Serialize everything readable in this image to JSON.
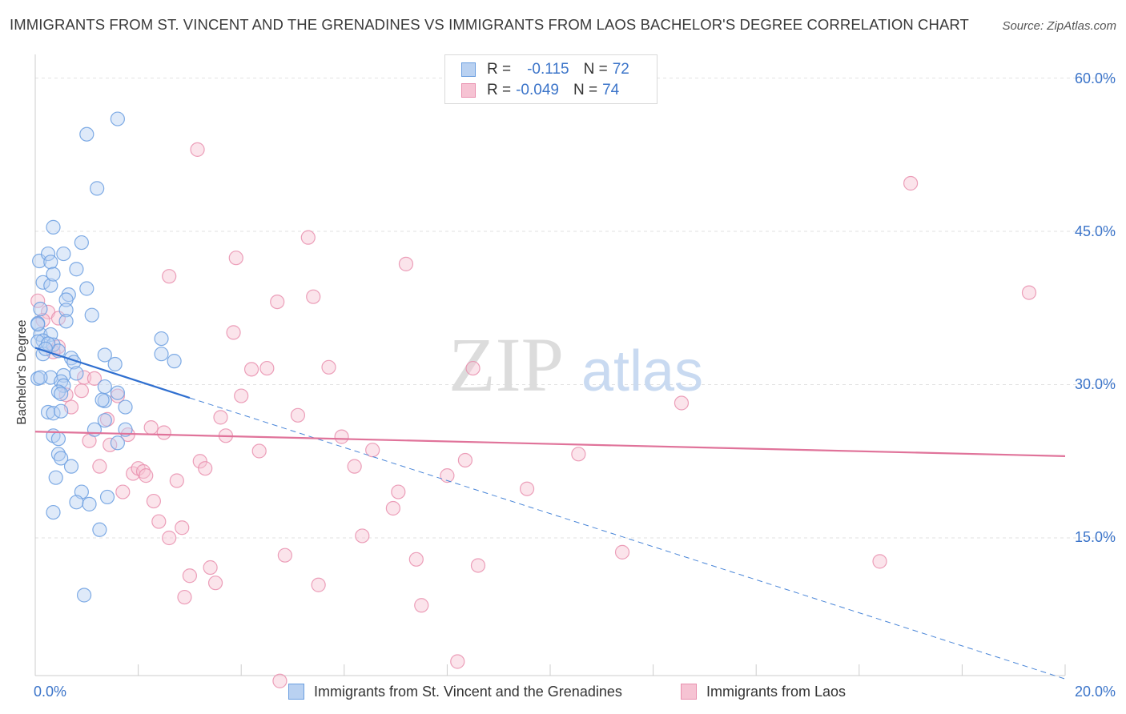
{
  "chart_data": {
    "type": "scatter",
    "title": "IMMIGRANTS FROM ST. VINCENT AND THE GRENADINES VS IMMIGRANTS FROM LAOS BACHELOR'S DEGREE CORRELATION CHART",
    "source": "Source: ZipAtlas.com",
    "xlabel": "",
    "ylabel": "Bachelor's Degree",
    "xlim": [
      0,
      20
    ],
    "ylim": [
      0,
      60
    ],
    "x_tick_labels": [
      "0.0%",
      "20.0%"
    ],
    "y_tick_labels": [
      "60.0%",
      "45.0%",
      "30.0%",
      "15.0%"
    ],
    "y_ticks": [
      60,
      45,
      30,
      15
    ],
    "watermark": {
      "zip": "ZIP",
      "atlas": "atlas"
    },
    "legend": [
      {
        "r_label": "R =",
        "r_value": "-0.115",
        "n_label": "N =",
        "n_value": "72"
      },
      {
        "r_label": "R =",
        "r_value": "-0.049",
        "n_label": "N =",
        "n_value": "74"
      }
    ],
    "series": [
      {
        "name": "Immigrants from St. Vincent and the Grenadines",
        "color": "#6a9ee0",
        "fill": "#b9d1f1",
        "trend": {
          "x": [
            0.0,
            3.0
          ],
          "y": [
            33.6,
            28.7
          ],
          "extend_to": [
            20.0,
            1.2
          ]
        },
        "points": [
          [
            0.08,
            42.1
          ],
          [
            0.25,
            42.8
          ],
          [
            0.3,
            42.0
          ],
          [
            0.55,
            42.8
          ],
          [
            0.35,
            45.4
          ],
          [
            0.9,
            43.9
          ],
          [
            0.15,
            40.0
          ],
          [
            0.3,
            39.7
          ],
          [
            0.35,
            40.8
          ],
          [
            0.8,
            41.3
          ],
          [
            1.0,
            39.4
          ],
          [
            0.65,
            38.8
          ],
          [
            0.6,
            38.3
          ],
          [
            0.1,
            37.4
          ],
          [
            0.6,
            37.3
          ],
          [
            1.1,
            36.8
          ],
          [
            0.05,
            36.0
          ],
          [
            0.6,
            36.2
          ],
          [
            0.1,
            34.9
          ],
          [
            0.3,
            34.9
          ],
          [
            0.15,
            34.3
          ],
          [
            0.35,
            33.9
          ],
          [
            0.05,
            34.2
          ],
          [
            0.15,
            33.0
          ],
          [
            0.45,
            33.3
          ],
          [
            0.7,
            32.6
          ],
          [
            0.75,
            32.2
          ],
          [
            1.35,
            32.9
          ],
          [
            1.55,
            32.0
          ],
          [
            2.45,
            34.5
          ],
          [
            2.45,
            33.0
          ],
          [
            2.7,
            32.3
          ],
          [
            0.05,
            30.6
          ],
          [
            0.3,
            30.7
          ],
          [
            0.55,
            30.9
          ],
          [
            0.5,
            30.3
          ],
          [
            0.55,
            29.9
          ],
          [
            0.45,
            29.3
          ],
          [
            1.35,
            29.8
          ],
          [
            1.6,
            29.2
          ],
          [
            1.35,
            28.4
          ],
          [
            1.75,
            27.8
          ],
          [
            0.25,
            27.3
          ],
          [
            0.35,
            27.2
          ],
          [
            0.5,
            27.4
          ],
          [
            1.35,
            26.5
          ],
          [
            1.15,
            25.6
          ],
          [
            1.75,
            25.6
          ],
          [
            0.35,
            25.0
          ],
          [
            0.45,
            24.7
          ],
          [
            1.6,
            24.3
          ],
          [
            0.45,
            23.2
          ],
          [
            0.5,
            22.8
          ],
          [
            0.7,
            22.0
          ],
          [
            0.4,
            20.9
          ],
          [
            0.9,
            19.5
          ],
          [
            1.4,
            19.0
          ],
          [
            0.8,
            18.5
          ],
          [
            1.05,
            18.3
          ],
          [
            0.35,
            17.5
          ],
          [
            1.25,
            15.8
          ],
          [
            0.95,
            9.4
          ],
          [
            1.0,
            54.5
          ],
          [
            1.6,
            56.0
          ],
          [
            1.2,
            49.2
          ],
          [
            0.05,
            35.9
          ],
          [
            0.25,
            34.0
          ],
          [
            0.1,
            30.7
          ],
          [
            0.5,
            29.1
          ],
          [
            1.3,
            28.5
          ],
          [
            0.8,
            31.1
          ],
          [
            0.2,
            33.5
          ]
        ]
      },
      {
        "name": "Immigrants from Laos",
        "color": "#e98fae",
        "fill": "#f6c3d3",
        "trend": {
          "x": [
            0.0,
            20.0
          ],
          "y": [
            25.4,
            23.0
          ]
        },
        "points": [
          [
            0.05,
            38.2
          ],
          [
            0.25,
            37.1
          ],
          [
            0.15,
            36.3
          ],
          [
            0.45,
            33.7
          ],
          [
            0.35,
            33.2
          ],
          [
            0.95,
            30.7
          ],
          [
            0.6,
            29.0
          ],
          [
            0.7,
            27.8
          ],
          [
            0.9,
            29.4
          ],
          [
            1.15,
            30.6
          ],
          [
            1.4,
            26.6
          ],
          [
            1.6,
            28.9
          ],
          [
            1.25,
            22.0
          ],
          [
            1.45,
            24.1
          ],
          [
            1.8,
            25.1
          ],
          [
            1.9,
            21.3
          ],
          [
            2.0,
            21.8
          ],
          [
            2.1,
            21.5
          ],
          [
            2.15,
            21.1
          ],
          [
            2.3,
            18.6
          ],
          [
            2.4,
            16.6
          ],
          [
            2.5,
            25.3
          ],
          [
            2.6,
            15.0
          ],
          [
            2.75,
            20.6
          ],
          [
            2.85,
            16.0
          ],
          [
            3.0,
            11.3
          ],
          [
            3.2,
            22.5
          ],
          [
            3.3,
            21.8
          ],
          [
            3.4,
            12.1
          ],
          [
            3.5,
            10.6
          ],
          [
            3.6,
            26.8
          ],
          [
            3.7,
            25.0
          ],
          [
            3.85,
            35.1
          ],
          [
            4.0,
            28.9
          ],
          [
            4.2,
            31.5
          ],
          [
            4.35,
            23.5
          ],
          [
            4.5,
            31.6
          ],
          [
            4.7,
            38.1
          ],
          [
            4.85,
            13.3
          ],
          [
            5.1,
            27.0
          ],
          [
            5.3,
            44.4
          ],
          [
            5.4,
            38.6
          ],
          [
            5.5,
            10.4
          ],
          [
            5.7,
            31.7
          ],
          [
            5.95,
            24.9
          ],
          [
            6.2,
            22.0
          ],
          [
            6.35,
            15.2
          ],
          [
            6.55,
            23.6
          ],
          [
            6.95,
            17.9
          ],
          [
            7.05,
            19.5
          ],
          [
            7.2,
            41.8
          ],
          [
            7.4,
            12.9
          ],
          [
            7.5,
            8.4
          ],
          [
            8.0,
            21.1
          ],
          [
            8.2,
            2.9
          ],
          [
            8.35,
            22.6
          ],
          [
            8.5,
            31.6
          ],
          [
            8.6,
            12.3
          ],
          [
            9.55,
            19.8
          ],
          [
            10.55,
            23.2
          ],
          [
            11.4,
            13.6
          ],
          [
            2.6,
            40.6
          ],
          [
            3.15,
            53.0
          ],
          [
            3.9,
            42.4
          ],
          [
            1.7,
            19.5
          ],
          [
            4.75,
            1.0
          ],
          [
            2.9,
            9.2
          ],
          [
            12.55,
            28.2
          ],
          [
            16.4,
            12.7
          ],
          [
            17.0,
            49.7
          ],
          [
            19.3,
            39.0
          ],
          [
            0.45,
            36.5
          ],
          [
            1.05,
            24.5
          ],
          [
            2.25,
            25.8
          ]
        ]
      }
    ]
  }
}
